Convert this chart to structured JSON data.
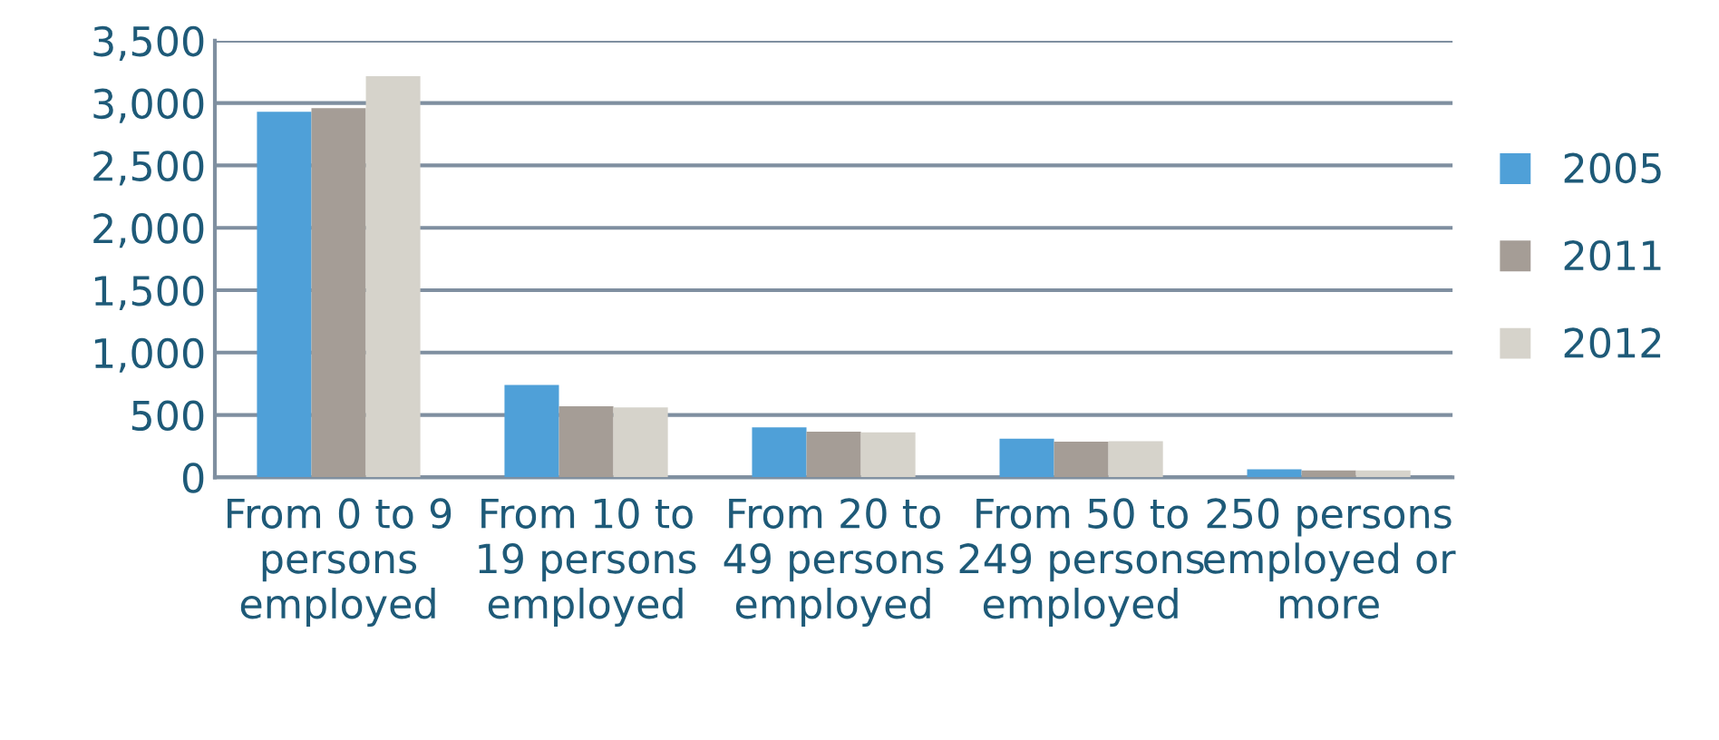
{
  "chart_data": {
    "type": "bar",
    "categories": [
      "From 0 to 9 persons employed",
      "From 10 to 19 persons employed",
      "From 20 to 49 persons employed",
      "From 50 to 249 persons employed",
      "250 persons employed or more"
    ],
    "series": [
      {
        "name": "2005",
        "color": "#4fa0d8",
        "values": [
          2930,
          740,
          400,
          310,
          65
        ]
      },
      {
        "name": "2011",
        "color": "#a59d96",
        "values": [
          2960,
          570,
          365,
          285,
          55
        ]
      },
      {
        "name": "2012",
        "color": "#d6d3cb",
        "values": [
          3215,
          560,
          360,
          290,
          55
        ]
      }
    ],
    "ylim": [
      0,
      3500
    ],
    "yticks": [
      {
        "value": 0,
        "label": "0"
      },
      {
        "value": 500,
        "label": "500"
      },
      {
        "value": 1000,
        "label": "1,000"
      },
      {
        "value": 1500,
        "label": "1,500"
      },
      {
        "value": 2000,
        "label": "2,000"
      },
      {
        "value": 2500,
        "label": "2,500"
      },
      {
        "value": 3000,
        "label": "3,000"
      },
      {
        "value": 3500,
        "label": "3,500"
      }
    ],
    "grid": "y",
    "legend": "right"
  }
}
